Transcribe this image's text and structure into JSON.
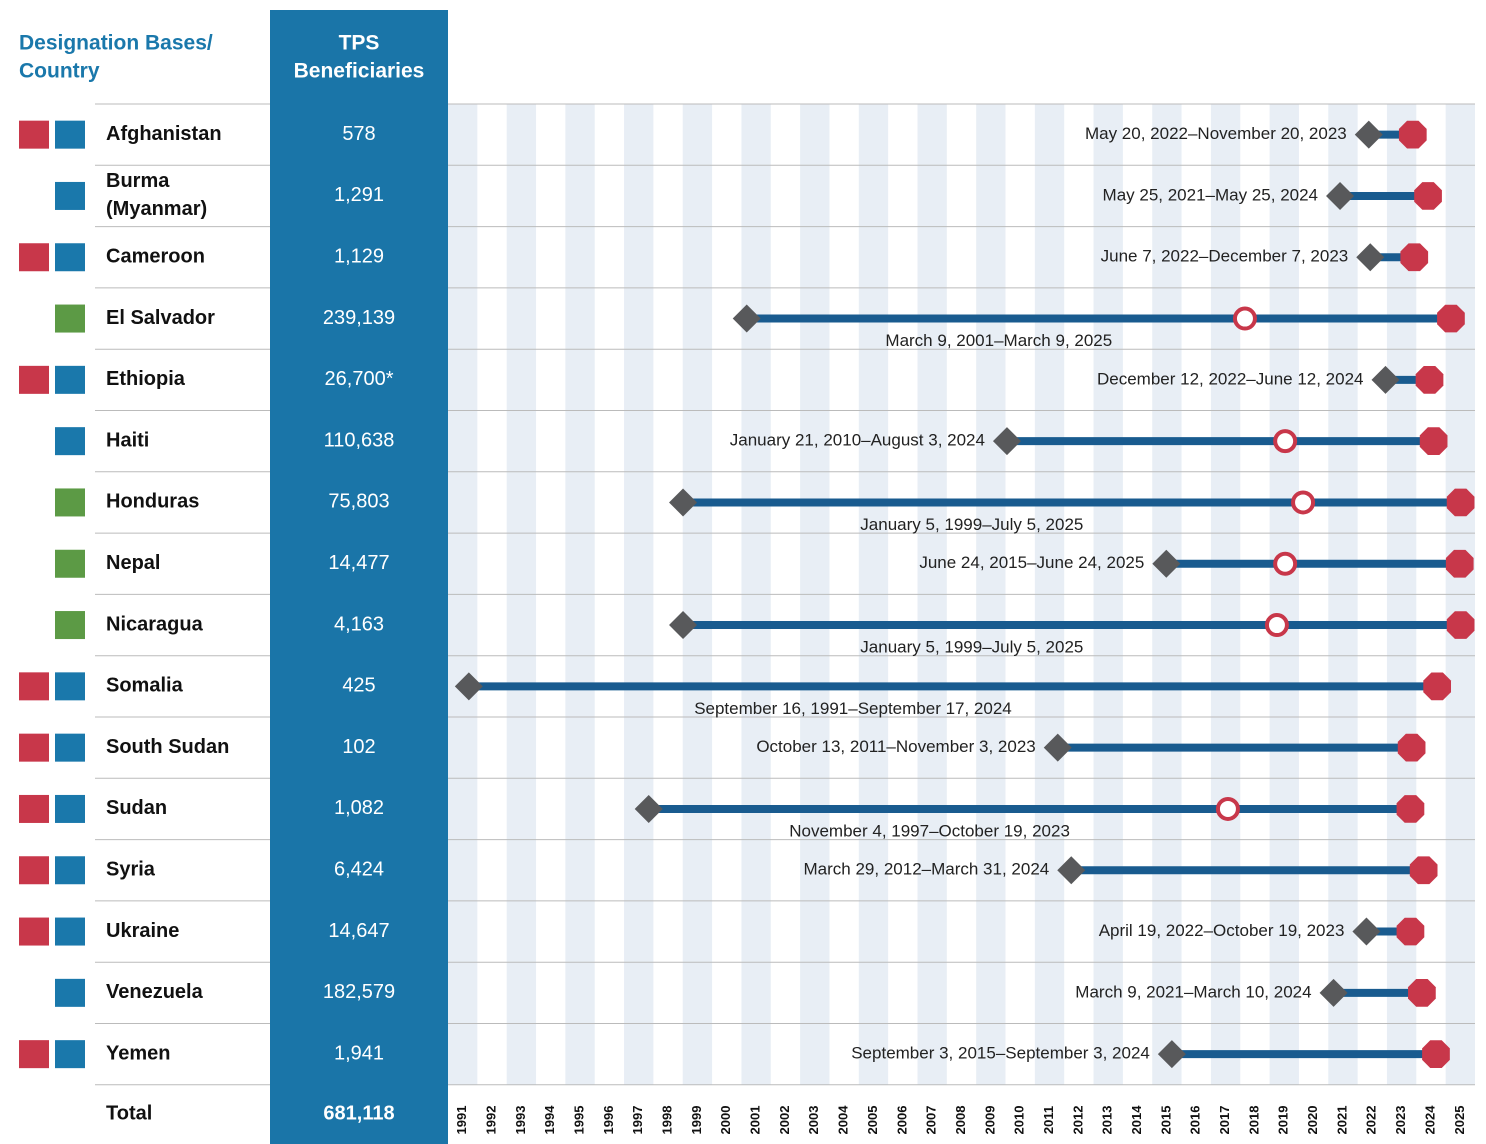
{
  "chart_data": {
    "type": "timeline",
    "header": {
      "country": [
        "Designation Bases/",
        "Country"
      ],
      "beneficiaries": [
        "TPS",
        "Beneficiaries"
      ]
    },
    "xlim": [
      1991,
      2026
    ],
    "xticks": [
      1991,
      1992,
      1993,
      1994,
      1995,
      1996,
      1997,
      1998,
      1999,
      2000,
      2001,
      2002,
      2003,
      2004,
      2005,
      2006,
      2007,
      2008,
      2009,
      2010,
      2011,
      2012,
      2013,
      2014,
      2015,
      2016,
      2017,
      2018,
      2019,
      2020,
      2021,
      2022,
      2023,
      2024,
      2025
    ],
    "colors": {
      "line": "#195b8f",
      "start": "#58595b",
      "end": "#c8374a",
      "column": "#1a75a8",
      "stripe": "#e8eef5"
    },
    "rows": [
      {
        "bases": [
          "#c8374a",
          "#1a78ab"
        ],
        "country": [
          "Afghanistan"
        ],
        "beneficiaries": "578",
        "start": 2022.38,
        "end": 2023.88,
        "label": "May 20, 2022–November 20, 2023"
      },
      {
        "bases": [
          "#1a78ab"
        ],
        "country": [
          "Burma",
          "(Myanmar)"
        ],
        "beneficiaries": "1,291",
        "start": 2021.4,
        "end": 2024.4,
        "label": "May 25, 2021–May 25, 2024"
      },
      {
        "bases": [
          "#c8374a",
          "#1a78ab"
        ],
        "country": [
          "Cameroon"
        ],
        "beneficiaries": "1,129",
        "start": 2022.43,
        "end": 2023.93,
        "label": "June 7, 2022–December 7, 2023"
      },
      {
        "bases": [
          "#5c9a45"
        ],
        "country": [
          "El Salvador"
        ],
        "beneficiaries": "239,139",
        "start": 2001.18,
        "end": 2025.18,
        "mark": 2018.16,
        "label": "March 9, 2001–March 9, 2025"
      },
      {
        "bases": [
          "#c8374a",
          "#1a78ab"
        ],
        "country": [
          "Ethiopia"
        ],
        "beneficiaries": "26,700*",
        "start": 2022.95,
        "end": 2024.45,
        "label": "December 12, 2022–June 12, 2024"
      },
      {
        "bases": [
          "#1a78ab"
        ],
        "country": [
          "Haiti"
        ],
        "beneficiaries": "110,638",
        "start": 2010.05,
        "end": 2024.59,
        "mark": 2019.53,
        "label": "January 21, 2010–August 3, 2024"
      },
      {
        "bases": [
          "#5c9a45"
        ],
        "country": [
          "Honduras"
        ],
        "beneficiaries": "75,803",
        "start": 1999.01,
        "end": 2025.51,
        "mark": 2020.14,
        "label": "January 5, 1999–July 5, 2025"
      },
      {
        "bases": [
          "#5c9a45"
        ],
        "country": [
          "Nepal"
        ],
        "beneficiaries": "14,477",
        "start": 2015.48,
        "end": 2025.48,
        "mark": 2019.53,
        "label": "June 24, 2015–June 24, 2025"
      },
      {
        "bases": [
          "#5c9a45"
        ],
        "country": [
          "Nicaragua"
        ],
        "beneficiaries": "4,163",
        "start": 1999.01,
        "end": 2025.51,
        "mark": 2019.25,
        "label": "January 5, 1999–July 5, 2025"
      },
      {
        "bases": [
          "#c8374a",
          "#1a78ab"
        ],
        "country": [
          "Somalia"
        ],
        "beneficiaries": "425",
        "start": 1991.71,
        "end": 2024.71,
        "label": "September 16, 1991–September 17, 2024"
      },
      {
        "bases": [
          "#c8374a",
          "#1a78ab"
        ],
        "country": [
          "South Sudan"
        ],
        "beneficiaries": "102",
        "start": 2011.78,
        "end": 2023.84,
        "label": "October 13, 2011–November 3, 2023"
      },
      {
        "bases": [
          "#c8374a",
          "#1a78ab"
        ],
        "country": [
          "Sudan"
        ],
        "beneficiaries": "1,082",
        "start": 1997.84,
        "end": 2023.8,
        "mark": 2017.58,
        "label": "November 4, 1997–October 19, 2023"
      },
      {
        "bases": [
          "#c8374a",
          "#1a78ab"
        ],
        "country": [
          "Syria"
        ],
        "beneficiaries": "6,424",
        "start": 2012.24,
        "end": 2024.25,
        "label": "March 29, 2012–March 31, 2024"
      },
      {
        "bases": [
          "#c8374a",
          "#1a78ab"
        ],
        "country": [
          "Ukraine"
        ],
        "beneficiaries": "14,647",
        "start": 2022.3,
        "end": 2023.8,
        "label": "April 19, 2022–October 19, 2023"
      },
      {
        "bases": [
          "#1a78ab"
        ],
        "country": [
          "Venezuela"
        ],
        "beneficiaries": "182,579",
        "start": 2021.18,
        "end": 2024.19,
        "label": "March 9, 2021–March 10, 2024"
      },
      {
        "bases": [
          "#c8374a",
          "#1a78ab"
        ],
        "country": [
          "Yemen"
        ],
        "beneficiaries": "1,941",
        "start": 2015.67,
        "end": 2024.67,
        "label": "September 3, 2015–September 3, 2024"
      }
    ],
    "total": {
      "country": "Total",
      "beneficiaries": "681,118"
    }
  }
}
